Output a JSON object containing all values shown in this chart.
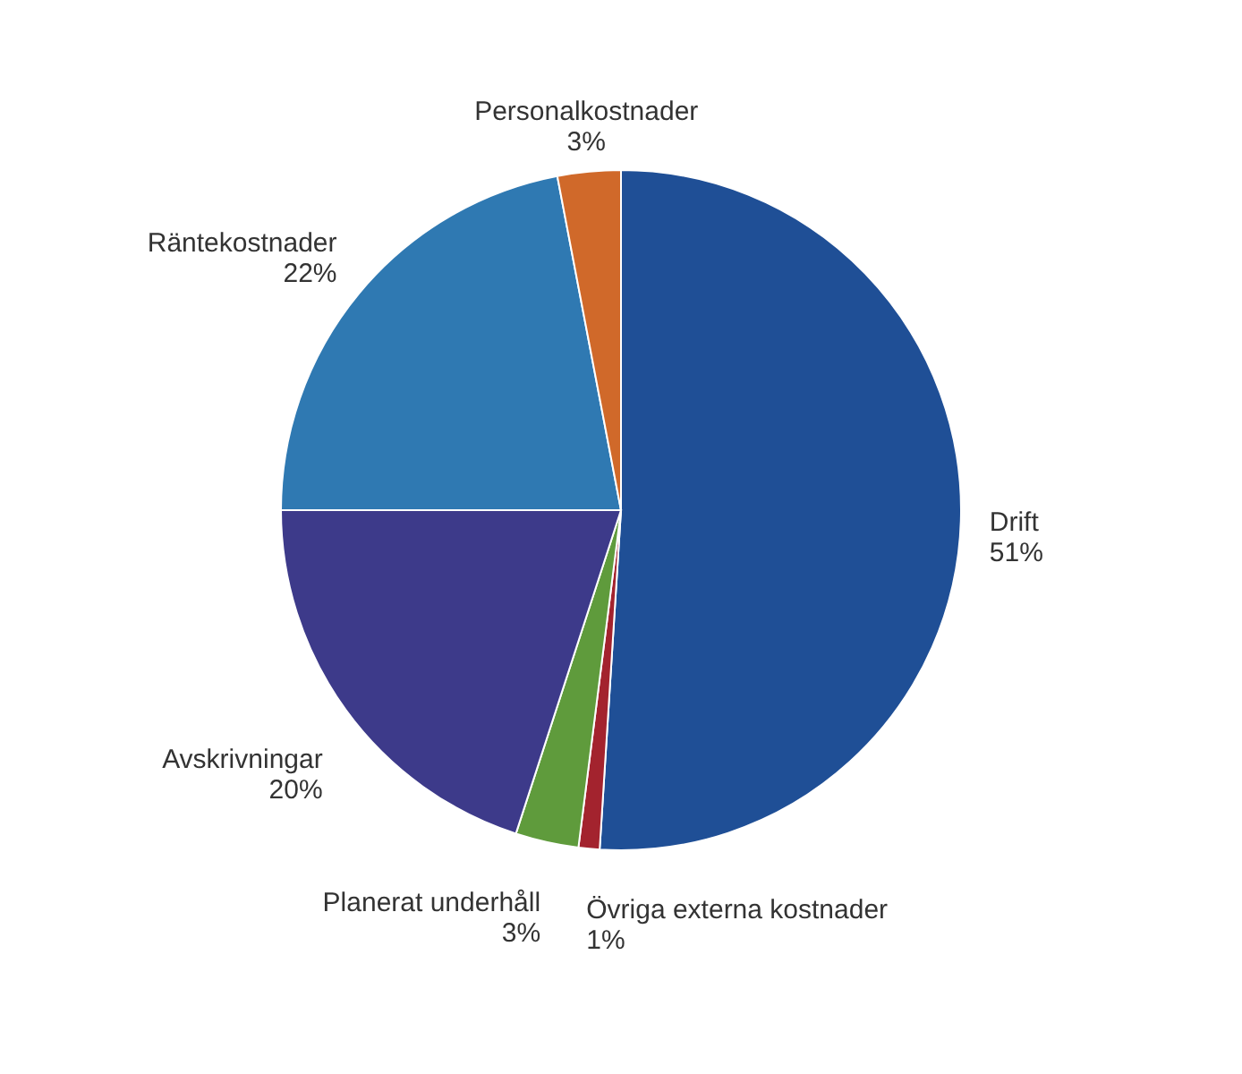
{
  "chart_data": {
    "type": "pie",
    "categories": [
      "Drift",
      "Övriga externa kostnader",
      "Planerat underhåll",
      "Avskrivningar",
      "Räntekostnader",
      "Personalkostnader"
    ],
    "values": [
      51,
      1,
      3,
      20,
      22,
      3
    ],
    "value_labels": [
      "51%",
      "1%",
      "3%",
      "20%",
      "22%",
      "3%"
    ],
    "colors": [
      "#1f4f96",
      "#a3232e",
      "#5f9b3c",
      "#3d3a8a",
      "#2f79b2",
      "#d0692a"
    ]
  }
}
